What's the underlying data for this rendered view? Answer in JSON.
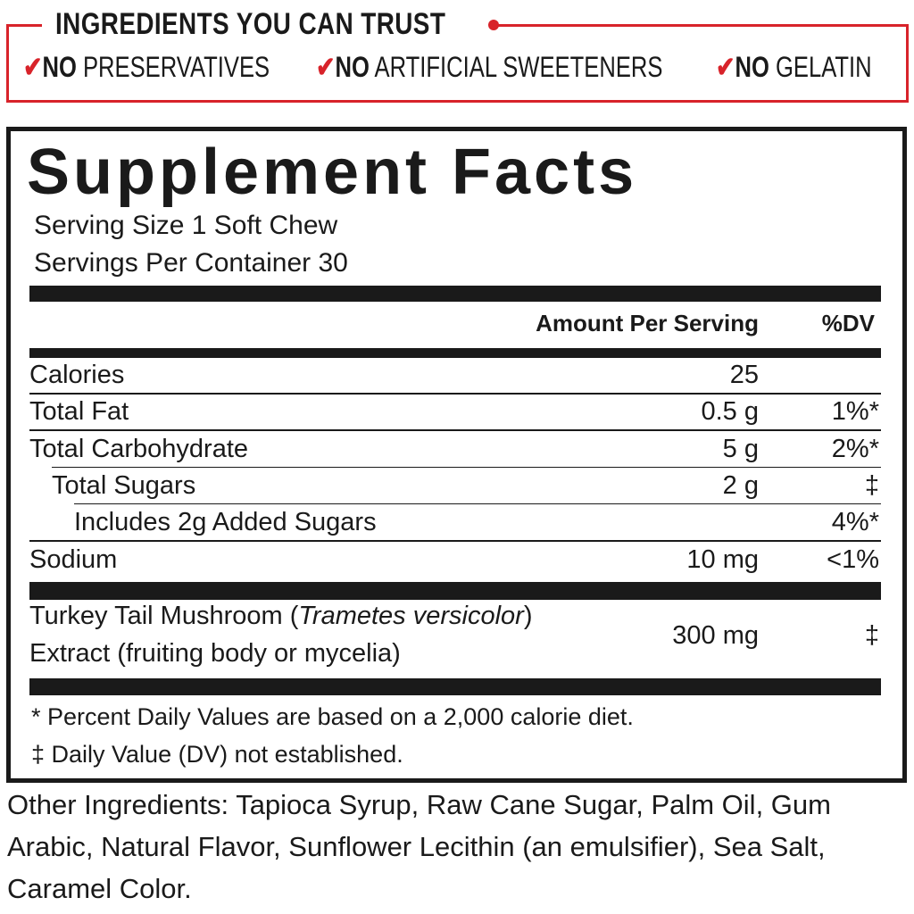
{
  "trust": {
    "title": "INGREDIENTS YOU CAN TRUST",
    "accent": "#d8232a",
    "claims": [
      {
        "check": "✔",
        "bold": "NO",
        "text": " PRESERVATIVES"
      },
      {
        "check": "✔",
        "bold": "NO",
        "text": " ARTIFICIAL SWEETENERS"
      },
      {
        "check": "✔",
        "bold": "NO",
        "text": " GELATIN"
      }
    ]
  },
  "facts": {
    "title": "Supplement Facts",
    "serving_size": "Serving Size 1 Soft Chew",
    "servings": "Servings Per Container 30",
    "header": {
      "amount": "Amount Per Serving",
      "dv": "%DV"
    },
    "rows": [
      {
        "name": "Calories",
        "amount": "25",
        "dv": ""
      },
      {
        "name": "Total Fat",
        "amount": "0.5 g",
        "dv": "1%*"
      },
      {
        "name": "Total Carbohydrate",
        "amount": "5 g",
        "dv": "2%*"
      },
      {
        "name": "Total Sugars",
        "amount": "2 g",
        "dv": "‡"
      },
      {
        "name": "Includes 2g Added Sugars",
        "amount": "",
        "dv": "4%*"
      },
      {
        "name": "Sodium",
        "amount": "10 mg",
        "dv": "<1%"
      }
    ],
    "extract": {
      "line1_a": "Turkey Tail Mushroom (",
      "line1_italic": "Trametes versicolor",
      "line1_b": ")",
      "line2": "Extract (fruiting body or mycelia)",
      "amount": "300 mg",
      "dv": "‡"
    },
    "footnotes": [
      "* Percent Daily Values are based on a 2,000 calorie diet.",
      "‡ Daily Value (DV) not established."
    ]
  },
  "other": [
    "Other Ingredients: Tapioca Syrup, Raw Cane Sugar, Palm Oil, Gum",
    "Arabic, Natural Flavor, Sunflower Lecithin (an emulsifier), Sea Salt,",
    "Caramel Color."
  ]
}
